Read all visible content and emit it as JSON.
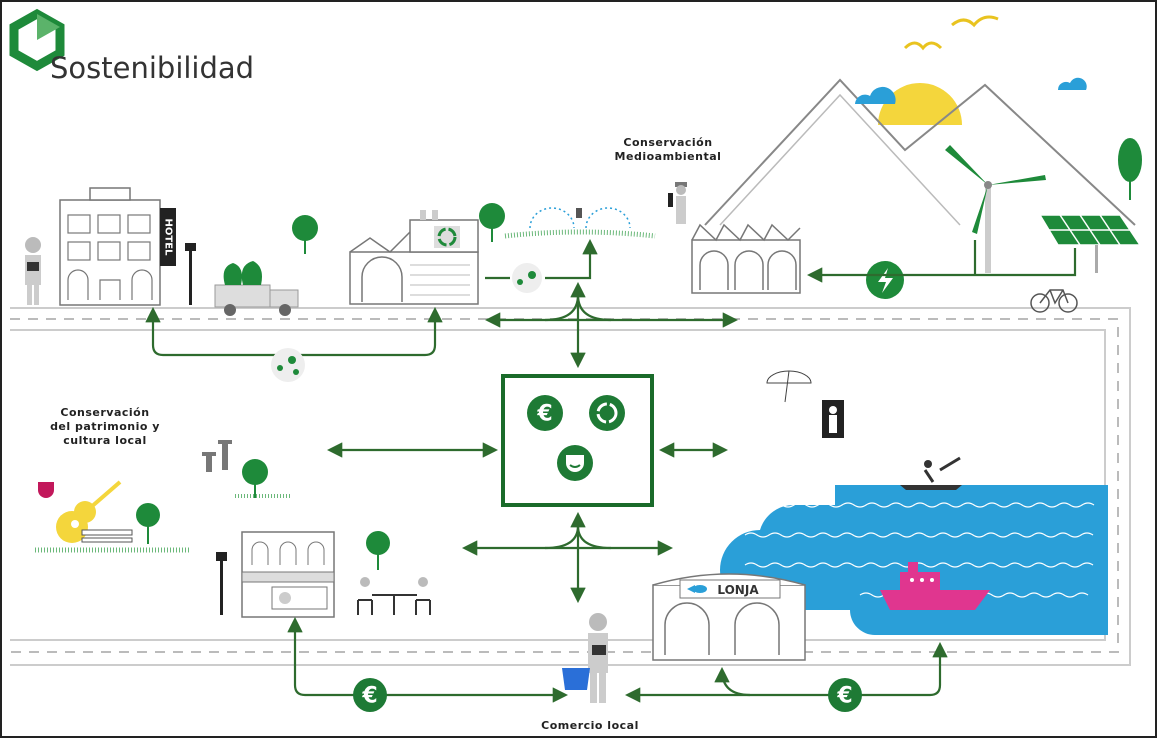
{
  "header": {
    "title": "Sostenibilidad"
  },
  "labels": {
    "environment": [
      "Conservación",
      "Medioambiental"
    ],
    "heritage": [
      "Conservación",
      "del patrimonio y",
      "cultura local"
    ],
    "commerce": "Comercio local",
    "hotel": "HOTEL",
    "market": "LONJA"
  },
  "symbols": {
    "euro": "€"
  }
}
